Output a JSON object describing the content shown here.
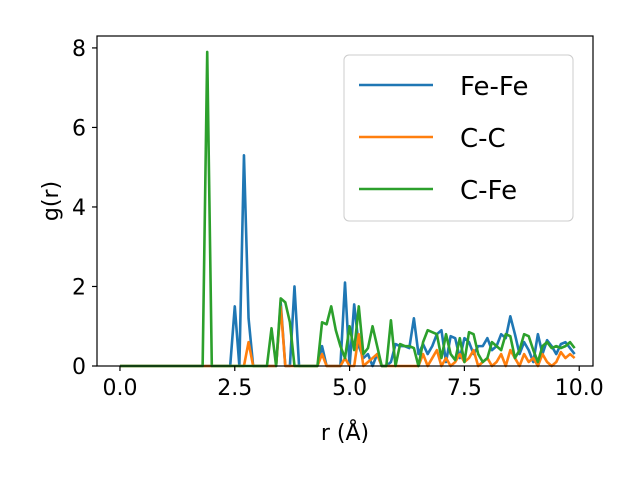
{
  "chart_data": {
    "type": "line",
    "xlabel": "r (Å)",
    "ylabel": "g(r)",
    "xlim": [
      -0.5,
      10.3
    ],
    "ylim": [
      0,
      8.3
    ],
    "x_ticks": [
      0.0,
      2.5,
      5.0,
      7.5,
      10.0
    ],
    "x_tick_labels": [
      "0.0",
      "2.5",
      "5.0",
      "7.5",
      "10.0"
    ],
    "y_ticks": [
      0,
      2,
      4,
      6,
      8
    ],
    "y_tick_labels": [
      "0",
      "2",
      "4",
      "6",
      "8"
    ],
    "grid": false,
    "legend": "top-right",
    "series": [
      {
        "name": "Fe-Fe",
        "color": "#1f77b4",
        "x": [
          0.0,
          2.4,
          2.5,
          2.6,
          2.7,
          2.8,
          2.9,
          3.4,
          3.5,
          3.6,
          3.7,
          3.8,
          3.9,
          4.3,
          4.4,
          4.5,
          4.6,
          4.7,
          4.8,
          4.9,
          5.0,
          5.1,
          5.2,
          5.3,
          5.4,
          5.5,
          5.6,
          5.7,
          5.8,
          5.9,
          6.0,
          6.1,
          6.2,
          6.3,
          6.4,
          6.5,
          6.6,
          6.7,
          6.8,
          6.9,
          7.0,
          7.1,
          7.2,
          7.3,
          7.4,
          7.5,
          7.6,
          7.7,
          7.8,
          7.9,
          8.0,
          8.1,
          8.2,
          8.3,
          8.4,
          8.5,
          8.6,
          8.7,
          8.8,
          8.9,
          9.0,
          9.1,
          9.2,
          9.3,
          9.4,
          9.5,
          9.6,
          9.7,
          9.8,
          9.9
        ],
        "y": [
          0,
          0,
          1.5,
          0,
          5.3,
          1.2,
          0,
          0,
          1.6,
          0,
          0,
          2.0,
          0,
          0,
          0.5,
          0,
          0,
          0,
          0,
          2.1,
          0,
          1.55,
          0.5,
          0.2,
          0.3,
          0,
          0.3,
          0,
          0,
          0.1,
          0.55,
          0.5,
          0.5,
          0.45,
          1.2,
          0.3,
          0.55,
          0.3,
          0.5,
          0.8,
          0.9,
          0.1,
          0.75,
          0.7,
          0.2,
          0.7,
          0.6,
          0.3,
          0.5,
          0.5,
          0.7,
          0.4,
          0.5,
          0.8,
          0.7,
          1.25,
          0.8,
          0.3,
          0.6,
          0.4,
          0.1,
          0.8,
          0.3,
          0.65,
          0.5,
          0.3,
          0.55,
          0.6,
          0.45,
          0.3
        ]
      },
      {
        "name": "C-C",
        "color": "#ff7f0e",
        "x": [
          0.0,
          2.7,
          2.8,
          2.9,
          3.4,
          3.5,
          3.6,
          4.3,
          4.4,
          4.5,
          4.8,
          4.9,
          5.0,
          5.1,
          5.2,
          5.3,
          5.4,
          5.5,
          5.6,
          5.7,
          5.8,
          6.5,
          6.6,
          6.7,
          6.8,
          6.9,
          7.0,
          7.1,
          7.2,
          7.3,
          7.4,
          7.5,
          7.6,
          7.7,
          7.8,
          7.9,
          8.0,
          8.1,
          8.2,
          8.3,
          8.4,
          8.5,
          8.6,
          8.7,
          8.8,
          8.9,
          9.0,
          9.1,
          9.2,
          9.3,
          9.4,
          9.5,
          9.6,
          9.7,
          9.8,
          9.9
        ],
        "y": [
          0,
          0,
          0.6,
          0,
          0,
          1.5,
          0,
          0,
          0.3,
          0,
          0,
          0.2,
          0,
          0,
          0.8,
          0,
          0.1,
          0.2,
          0.3,
          0,
          0,
          0,
          0.3,
          0,
          0.2,
          0.4,
          0,
          0.2,
          0,
          0.1,
          0.3,
          0.1,
          0.2,
          0.4,
          0,
          0.1,
          0.2,
          0,
          0.1,
          0.3,
          0,
          0.4,
          0.2,
          0,
          0.3,
          0.1,
          0.2,
          0,
          0.3,
          0.1,
          0,
          0.1,
          0.35,
          0.2,
          0.3,
          0.2
        ]
      },
      {
        "name": "C-Fe",
        "color": "#2ca02c",
        "x": [
          0.0,
          1.8,
          1.9,
          2.0,
          3.1,
          3.2,
          3.3,
          3.4,
          3.5,
          3.6,
          3.7,
          3.8,
          4.3,
          4.4,
          4.5,
          4.6,
          4.7,
          4.8,
          4.9,
          5.0,
          5.1,
          5.2,
          5.3,
          5.4,
          5.5,
          5.6,
          5.7,
          5.8,
          5.9,
          6.0,
          6.1,
          6.2,
          6.3,
          6.4,
          6.5,
          6.6,
          6.7,
          6.8,
          6.9,
          7.0,
          7.1,
          7.2,
          7.3,
          7.4,
          7.5,
          7.6,
          7.7,
          7.8,
          7.9,
          8.0,
          8.1,
          8.2,
          8.3,
          8.4,
          8.5,
          8.6,
          8.7,
          8.8,
          8.9,
          9.0,
          9.1,
          9.2,
          9.3,
          9.4,
          9.5,
          9.6,
          9.7,
          9.8,
          9.9
        ],
        "y": [
          0,
          0,
          7.9,
          0,
          0,
          0,
          0.95,
          0,
          1.7,
          1.6,
          1.1,
          0,
          0,
          1.1,
          1.05,
          1.5,
          0.9,
          0.5,
          0.2,
          1.0,
          0.4,
          1.5,
          0.3,
          0.45,
          1.0,
          0.5,
          0,
          0,
          1.15,
          0,
          0.55,
          0.5,
          0.5,
          0.45,
          0,
          0.6,
          0.9,
          0.85,
          0.8,
          0.2,
          0.8,
          0.3,
          0.15,
          0.7,
          0.1,
          0.85,
          0.8,
          0.3,
          0.1,
          0.2,
          0.6,
          0.5,
          0.4,
          0.8,
          0.75,
          0.2,
          0.4,
          0.8,
          0.75,
          0.4,
          0.1,
          0.5,
          0.6,
          0.45,
          0.5,
          0.45,
          0.5,
          0.6,
          0.45
        ]
      }
    ]
  }
}
